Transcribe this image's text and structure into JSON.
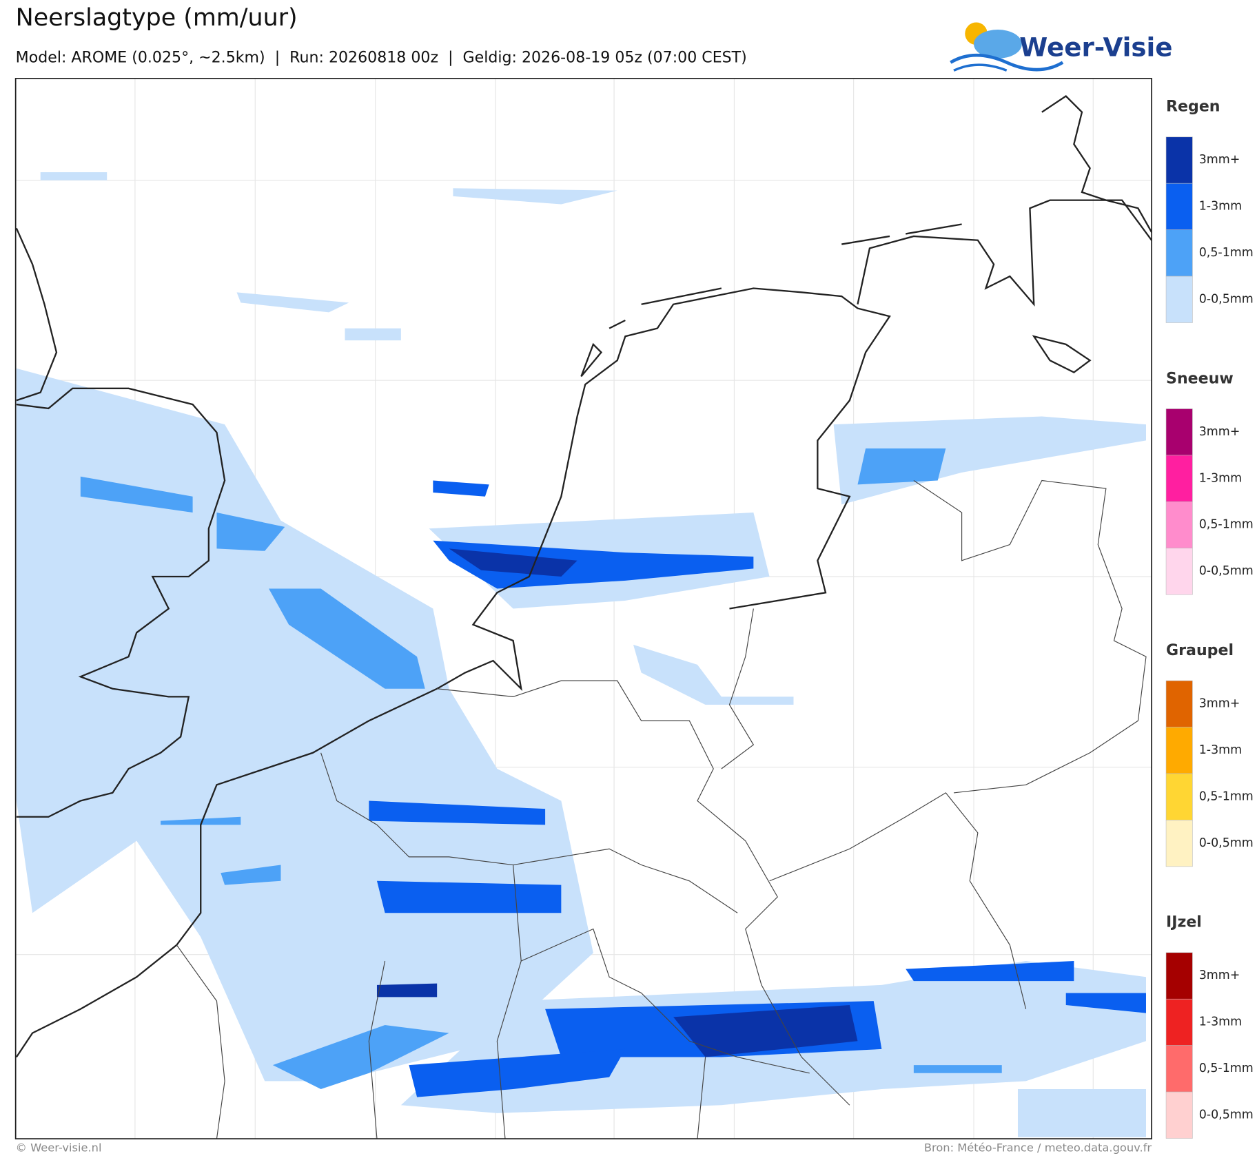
{
  "header": {
    "title": "Neerslagtype (mm/uur)",
    "subtitle": "Model: AROME (0.025°, ~2.5km)  |  Run: 20260818 00z  |  Geldig: 2026-08-19 05z (07:00 CEST)"
  },
  "logo": {
    "text": "Weer-Visie"
  },
  "legend": [
    {
      "title": "Regen",
      "items": [
        {
          "label": "3mm+",
          "color": "#0a33a8"
        },
        {
          "label": "1-3mm",
          "color": "#0a5ff0"
        },
        {
          "label": "0,5-1mm",
          "color": "#4da2f7"
        },
        {
          "label": "0-0,5mm",
          "color": "#c8e1fb"
        }
      ]
    },
    {
      "title": "Sneeuw",
      "items": [
        {
          "label": "3mm+",
          "color": "#a8006e"
        },
        {
          "label": "1-3mm",
          "color": "#ff1fa0"
        },
        {
          "label": "0,5-1mm",
          "color": "#ff8ccc"
        },
        {
          "label": "0-0,5mm",
          "color": "#ffd6ec"
        }
      ]
    },
    {
      "title": "Graupel",
      "items": [
        {
          "label": "3mm+",
          "color": "#e06400"
        },
        {
          "label": "1-3mm",
          "color": "#ffaa00"
        },
        {
          "label": "0,5-1mm",
          "color": "#ffd633"
        },
        {
          "label": "0-0,5mm",
          "color": "#fff2c2"
        }
      ]
    },
    {
      "title": "IJzel",
      "items": [
        {
          "label": "3mm+",
          "color": "#a50000"
        },
        {
          "label": "1-3mm",
          "color": "#ee2222"
        },
        {
          "label": "0,5-1mm",
          "color": "#ff6b6b"
        },
        {
          "label": "0-0,5mm",
          "color": "#ffd0d0"
        }
      ]
    }
  ],
  "footer": {
    "credit": "© Weer-visie.nl",
    "source": "Bron: Météo-France / meteo.data.gouv.fr"
  }
}
